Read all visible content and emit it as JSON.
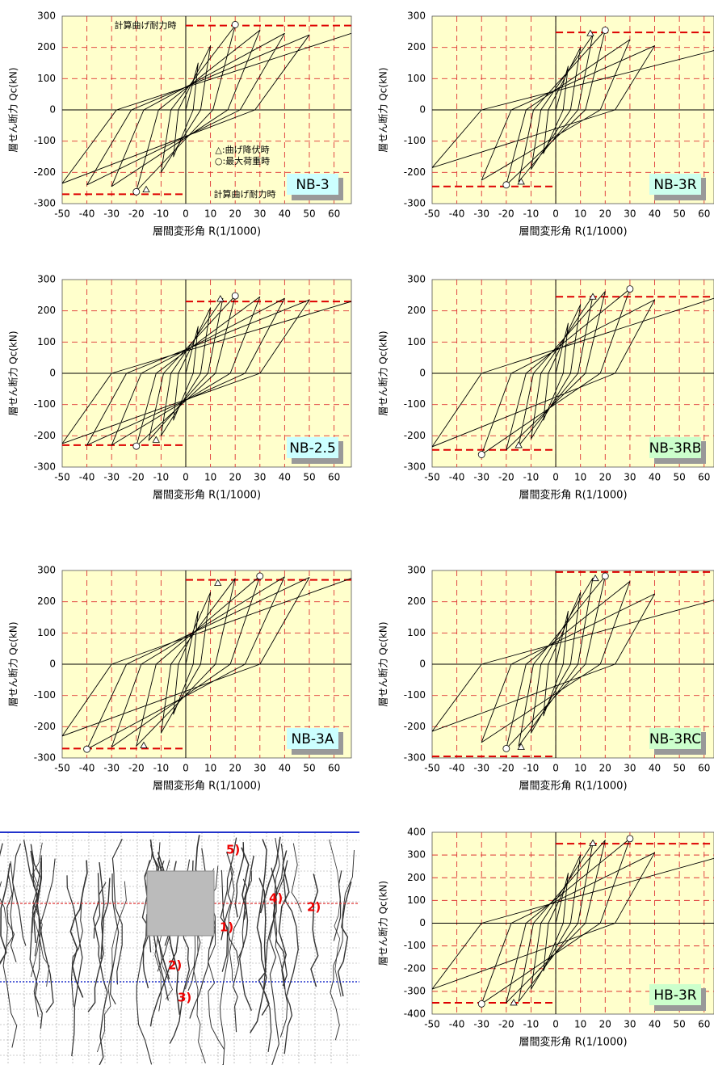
{
  "chart_data": [
    {
      "type": "hysteresis",
      "label": "NB-3",
      "box_color": "#ccffff",
      "y_label": "層せん断力 Qc(kN)",
      "x_label": "層間変形角 R(1/1000)",
      "xlim": [
        -50,
        67
      ],
      "ylim": [
        -300,
        300
      ],
      "xticks": [
        -50,
        -40,
        -30,
        -20,
        -10,
        0,
        10,
        20,
        30,
        40,
        50,
        60
      ],
      "yticks": [
        -300,
        -200,
        -100,
        0,
        100,
        200,
        300
      ],
      "grid": true,
      "annotations": [
        "計算曲げ耐力時",
        "計算曲げ耐力時",
        "△:曲げ降伏時",
        "○:最大荷重時"
      ],
      "curve": {
        "x": [
          0,
          5,
          3,
          -5,
          -3,
          10,
          6,
          -10,
          -6,
          20,
          11,
          -20,
          -11,
          30,
          17,
          -30,
          -17,
          40,
          22,
          -40,
          -22,
          50,
          28,
          -50,
          -28,
          67
        ],
        "y": [
          0,
          150,
          0,
          -150,
          0,
          205,
          0,
          -200,
          0,
          270,
          0,
          -260,
          0,
          255,
          0,
          -245,
          0,
          245,
          0,
          -240,
          0,
          240,
          0,
          -235,
          0,
          245
        ]
      },
      "yield_points": {
        "x": [
          -16
        ],
        "y": [
          -255
        ]
      },
      "max_points": {
        "x": [
          20,
          -20
        ],
        "y": [
          273,
          -262
        ]
      },
      "capacity_lines": [
        270,
        -270
      ]
    },
    {
      "type": "hysteresis",
      "label": "NB-3R",
      "box_color": "#ccffee",
      "y_label": "層せん断力 Qc(kN)",
      "x_label": "層間変形角 R(1/1000)",
      "xlim": [
        -50,
        64
      ],
      "ylim": [
        -300,
        300
      ],
      "xticks": [
        -50,
        -40,
        -30,
        -20,
        -10,
        0,
        10,
        20,
        30,
        40,
        50,
        60
      ],
      "yticks": [
        -300,
        -200,
        -100,
        0,
        100,
        200,
        300
      ],
      "grid": true,
      "curve": {
        "x": [
          0,
          5,
          3,
          -5,
          -3,
          10,
          6,
          -10,
          -6,
          15,
          9,
          -15,
          -9,
          20,
          12,
          -20,
          -12,
          30,
          18,
          -30,
          -18,
          40,
          24,
          -50,
          -30,
          64
        ],
        "y": [
          0,
          140,
          0,
          -140,
          0,
          200,
          0,
          -190,
          0,
          240,
          0,
          -230,
          0,
          255,
          0,
          -240,
          0,
          225,
          0,
          -225,
          0,
          205,
          0,
          -185,
          0,
          190
        ]
      },
      "yield_points": {
        "x": [
          14,
          -14
        ],
        "y": [
          245,
          -230
        ]
      },
      "max_points": {
        "x": [
          20,
          -20
        ],
        "y": [
          255,
          -240
        ]
      },
      "capacity_lines": [
        248,
        -245
      ]
    },
    {
      "type": "hysteresis",
      "label": "NB-2.5",
      "box_color": "#ccffff",
      "y_label": "層せん断力 Qc(kN)",
      "x_label": "層間変形角 R(1/1000)",
      "xlim": [
        -50,
        67
      ],
      "ylim": [
        -300,
        300
      ],
      "xticks": [
        -50,
        -40,
        -30,
        -20,
        -10,
        0,
        10,
        20,
        30,
        40,
        50,
        60
      ],
      "yticks": [
        -300,
        -200,
        -100,
        0,
        100,
        200,
        300
      ],
      "grid": true,
      "curve": {
        "x": [
          0,
          5,
          3,
          -5,
          -3,
          10,
          6,
          -10,
          -6,
          15,
          9,
          -15,
          -9,
          20,
          12,
          -20,
          -12,
          30,
          18,
          -30,
          -18,
          40,
          24,
          -40,
          -24,
          50,
          30,
          -50,
          -30,
          67
        ],
        "y": [
          0,
          150,
          0,
          -150,
          0,
          210,
          0,
          -200,
          0,
          240,
          0,
          -215,
          0,
          248,
          0,
          -233,
          0,
          245,
          0,
          -230,
          0,
          240,
          0,
          -230,
          0,
          235,
          0,
          -225,
          0,
          230
        ]
      },
      "yield_points": {
        "x": [
          14,
          -12
        ],
        "y": [
          238,
          -213
        ]
      },
      "max_points": {
        "x": [
          20,
          -20
        ],
        "y": [
          248,
          -233
        ]
      },
      "capacity_lines": [
        230,
        -230
      ]
    },
    {
      "type": "hysteresis",
      "label": "NB-3RB",
      "box_color": "#ccffcc",
      "y_label": "層せん断力 Qc(kN)",
      "x_label": "層間変形角 R(1/1000)",
      "xlim": [
        -50,
        64
      ],
      "ylim": [
        -300,
        300
      ],
      "xticks": [
        -50,
        -40,
        -30,
        -20,
        -10,
        0,
        10,
        20,
        30,
        40,
        50,
        60
      ],
      "yticks": [
        -300,
        -200,
        -100,
        0,
        100,
        200,
        300
      ],
      "grid": true,
      "curve": {
        "x": [
          0,
          5,
          3,
          -5,
          -3,
          10,
          6,
          -10,
          -6,
          15,
          9,
          -15,
          -9,
          20,
          12,
          -20,
          -12,
          30,
          18,
          -30,
          -18,
          40,
          24,
          -50,
          -30,
          64
        ],
        "y": [
          0,
          160,
          0,
          -150,
          0,
          220,
          0,
          -210,
          0,
          248,
          0,
          -232,
          0,
          262,
          0,
          -245,
          0,
          270,
          0,
          -260,
          0,
          235,
          0,
          -235,
          0,
          240
        ]
      },
      "yield_points": {
        "x": [
          15,
          -15
        ],
        "y": [
          245,
          -230
        ]
      },
      "max_points": {
        "x": [
          30,
          -30
        ],
        "y": [
          270,
          -260
        ]
      },
      "capacity_lines": [
        245,
        -245
      ]
    },
    {
      "type": "hysteresis",
      "label": "NB-3A",
      "box_color": "#ccffff",
      "y_label": "層せん断力 Qc(kN)",
      "x_label": "層間変形角 R(1/1000)",
      "xlim": [
        -50,
        67
      ],
      "ylim": [
        -300,
        300
      ],
      "xticks": [
        -50,
        -40,
        -30,
        -20,
        -10,
        0,
        10,
        20,
        30,
        40,
        50,
        60
      ],
      "yticks": [
        -300,
        -200,
        -100,
        0,
        100,
        200,
        300
      ],
      "grid": true,
      "curve": {
        "x": [
          0,
          5,
          3,
          -5,
          -3,
          10,
          6,
          -10,
          -6,
          20,
          12,
          -20,
          -12,
          30,
          18,
          -30,
          -18,
          40,
          24,
          -40,
          -24,
          50,
          30,
          -50,
          -30,
          67
        ],
        "y": [
          0,
          170,
          0,
          -160,
          0,
          230,
          0,
          -220,
          0,
          275,
          0,
          -262,
          0,
          282,
          0,
          -265,
          0,
          280,
          0,
          -272,
          0,
          278,
          0,
          -230,
          0,
          275
        ]
      },
      "yield_points": {
        "x": [
          13,
          -17
        ],
        "y": [
          260,
          -260
        ]
      },
      "max_points": {
        "x": [
          30,
          -40
        ],
        "y": [
          282,
          -272
        ]
      },
      "capacity_lines": [
        270,
        -270
      ]
    },
    {
      "type": "hysteresis",
      "label": "NB-3RC",
      "box_color": "#ccffcc",
      "y_label": "層せん断力 Qc(kN)",
      "x_label": "層間変形角 R(1/1000)",
      "xlim": [
        -50,
        64
      ],
      "ylim": [
        -300,
        300
      ],
      "xticks": [
        -50,
        -40,
        -30,
        -20,
        -10,
        0,
        10,
        20,
        30,
        40,
        50,
        60
      ],
      "yticks": [
        -300,
        -200,
        -100,
        0,
        100,
        200,
        300
      ],
      "grid": true,
      "curve": {
        "x": [
          0,
          5,
          3,
          -5,
          -3,
          10,
          6,
          -10,
          -6,
          15,
          9,
          -15,
          -9,
          20,
          12,
          -20,
          -12,
          30,
          18,
          -30,
          -18,
          40,
          24,
          -50,
          -30,
          64
        ],
        "y": [
          0,
          170,
          0,
          -165,
          0,
          230,
          0,
          -220,
          0,
          276,
          0,
          -262,
          0,
          282,
          0,
          -270,
          0,
          265,
          0,
          -250,
          0,
          225,
          0,
          -215,
          0,
          205
        ]
      },
      "yield_points": {
        "x": [
          16,
          -14
        ],
        "y": [
          275,
          -265
        ]
      },
      "max_points": {
        "x": [
          20,
          -20
        ],
        "y": [
          282,
          -270
        ]
      },
      "capacity_lines": [
        295,
        -295
      ]
    },
    {
      "type": "hysteresis",
      "label": "HB-3R",
      "box_color": "#ccffcc",
      "y_label": "層せん断力 Qc(kN)",
      "x_label": "層間変形角 R(1/1000)",
      "xlim": [
        -50,
        64
      ],
      "ylim": [
        -400,
        400
      ],
      "xticks": [
        -50,
        -40,
        -30,
        -20,
        -10,
        0,
        10,
        20,
        30,
        40,
        50,
        60
      ],
      "yticks": [
        -400,
        -300,
        -200,
        -100,
        0,
        100,
        200,
        300,
        400
      ],
      "grid": true,
      "curve": {
        "x": [
          0,
          5,
          3,
          -5,
          -3,
          10,
          6,
          -10,
          -6,
          15,
          9,
          -15,
          -9,
          20,
          12,
          -20,
          -12,
          30,
          18,
          -30,
          -18,
          40,
          24,
          -50,
          -30,
          64
        ],
        "y": [
          0,
          220,
          0,
          -210,
          0,
          300,
          0,
          -290,
          0,
          352,
          0,
          -345,
          0,
          365,
          0,
          -350,
          0,
          372,
          0,
          -355,
          0,
          310,
          0,
          -290,
          0,
          285
        ]
      },
      "yield_points": {
        "x": [
          15,
          -17
        ],
        "y": [
          352,
          -350
        ]
      },
      "max_points": {
        "x": [
          30,
          -30
        ],
        "y": [
          372,
          -355
        ]
      },
      "capacity_lines": [
        350,
        -350
      ]
    }
  ],
  "crack_diagram": {
    "labels": [
      "5)",
      "4)",
      "2)",
      "1)",
      "2)",
      "3)"
    ]
  }
}
